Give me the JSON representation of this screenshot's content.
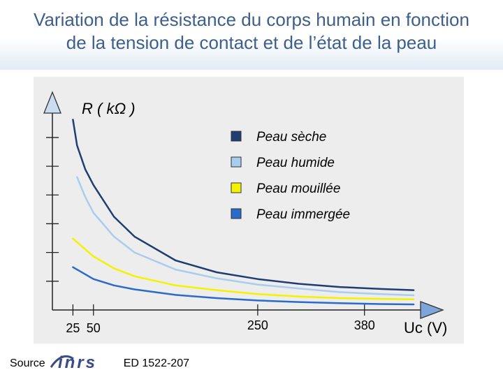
{
  "header": {
    "title_line1": "Variation de la résistance du corps humain en fonction",
    "title_line2": "de la tension de contact et de l’état de la peau"
  },
  "chart_data": {
    "type": "line",
    "title": "Variation de la résistance du corps humain en fonction de la tension de contact et de l’état de la peau",
    "ylabel": "R ( kΩ )",
    "xlabel": "Uc (V)",
    "x_ticks": [
      25,
      50,
      250,
      380
    ],
    "xlim": [
      0,
      450
    ],
    "ylim": [
      0,
      5
    ],
    "y_tick_count": 6,
    "y_tick_labels_shown": false,
    "grid": false,
    "legend_position": "top-right",
    "series": [
      {
        "name": "Peau sèche",
        "color": "#1f3d73",
        "x": [
          25,
          30,
          40,
          50,
          75,
          100,
          150,
          200,
          250,
          300,
          350,
          400,
          440
        ],
        "y": [
          4.8,
          4.15,
          3.55,
          3.15,
          2.35,
          1.85,
          1.25,
          0.95,
          0.78,
          0.66,
          0.58,
          0.53,
          0.5
        ]
      },
      {
        "name": "Peau humide",
        "color": "#a9cdee",
        "x": [
          30,
          40,
          50,
          75,
          100,
          150,
          200,
          250,
          300,
          350,
          400,
          440
        ],
        "y": [
          3.35,
          2.85,
          2.45,
          1.85,
          1.45,
          1.02,
          0.8,
          0.64,
          0.54,
          0.45,
          0.4,
          0.37
        ]
      },
      {
        "name": "Peau mouillée",
        "color": "#f5f200",
        "x": [
          25,
          50,
          75,
          100,
          150,
          200,
          250,
          300,
          350,
          400,
          440
        ],
        "y": [
          1.8,
          1.35,
          1.05,
          0.85,
          0.62,
          0.5,
          0.4,
          0.34,
          0.3,
          0.28,
          0.27
        ]
      },
      {
        "name": "Peau immergée",
        "color": "#2a6bc9",
        "x": [
          25,
          50,
          75,
          100,
          150,
          200,
          250,
          300,
          350,
          400,
          440
        ],
        "y": [
          1.08,
          0.78,
          0.62,
          0.52,
          0.38,
          0.3,
          0.24,
          0.2,
          0.17,
          0.15,
          0.14
        ]
      }
    ]
  },
  "footer": {
    "source_label": "Source",
    "logo_text": "inrs",
    "reference": "ED 1522-207"
  }
}
